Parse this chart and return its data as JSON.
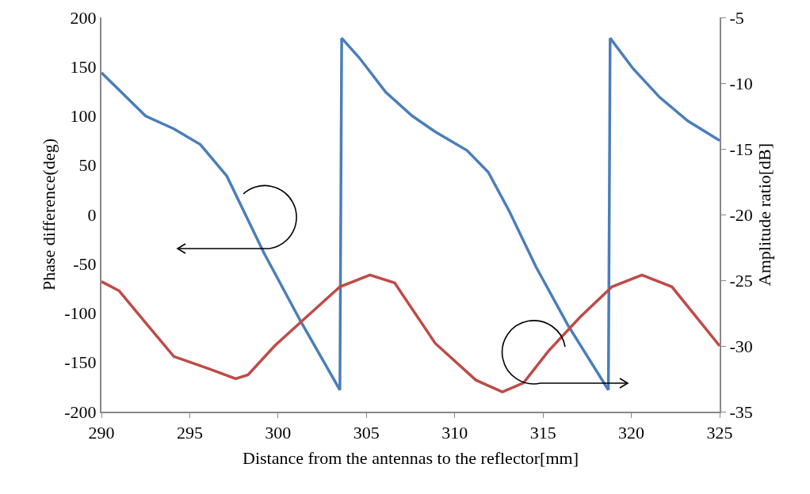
{
  "chart_data": {
    "type": "line",
    "xlabel": "Distance from the antennas to the reflector[mm]",
    "ylabel": "Phase difference(deg)",
    "y2label": "Amplitude ratio[dB]",
    "xlim": [
      290,
      325
    ],
    "xticks": [
      290,
      295,
      300,
      305,
      310,
      315,
      320,
      325
    ],
    "ylim": [
      -200,
      200
    ],
    "yticks": [
      -200,
      -150,
      -100,
      -50,
      0,
      50,
      100,
      150,
      200
    ],
    "y2lim": [
      -35,
      -5
    ],
    "y2ticks": [
      -35,
      -30,
      -25,
      -20,
      -15,
      -10,
      -5
    ],
    "marker": "none",
    "line_style": "solid",
    "series": [
      {
        "color": "#4a7ebb",
        "x": [
          290,
          292.5,
          294.1,
          295.6,
          297.1,
          299.2,
          301.3,
          303.5,
          303.6,
          304.6,
          306.1,
          307.6,
          308.9,
          310.7,
          311.9,
          313.1,
          314.6,
          316.4,
          318.7,
          318.8,
          320.1,
          321.6,
          323.2,
          325
        ],
        "values": [
          144,
          100,
          87,
          71,
          39,
          -39,
          -109,
          -178,
          179,
          159,
          124,
          100,
          84,
          65,
          43,
          3,
          -53,
          -112,
          -178,
          179,
          148,
          119,
          95,
          75
        ]
      },
      {
        "color": "#be4b48",
        "axis": "y2",
        "x": [
          290,
          291,
          292.6,
          294.1,
          296,
          297.6,
          298.3,
          299.8,
          301.6,
          303.5,
          305.2,
          306.6,
          308.9,
          311.2,
          312.7,
          313.9,
          315.3,
          317.1,
          318.9,
          320.6,
          322.3,
          325
        ],
        "values": [
          -25.1,
          -25.8,
          -28.4,
          -30.8,
          -31.7,
          -32.5,
          -32.2,
          -30,
          -27.8,
          -25.5,
          -24.6,
          -25.2,
          -29.8,
          -32.6,
          -33.5,
          -32.8,
          -30.4,
          -27.8,
          -25.5,
          -24.6,
          -25.5,
          -30
        ]
      }
    ]
  }
}
